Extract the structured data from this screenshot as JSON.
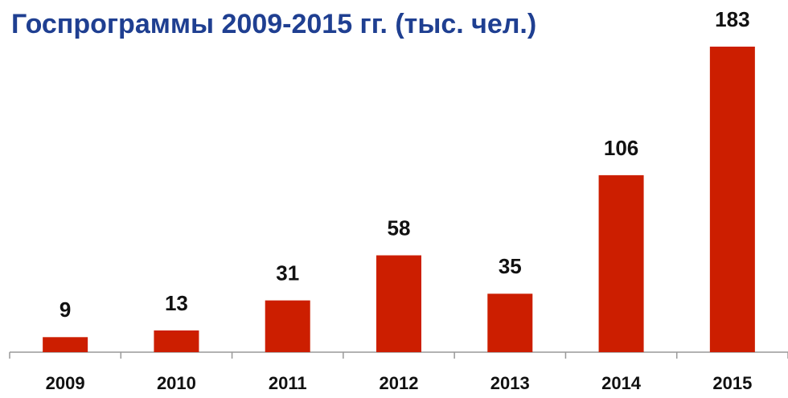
{
  "chart_data": {
    "type": "bar",
    "title": "Госпрограммы 2009-2015 гг. (тыс. чел.)",
    "categories": [
      "2009",
      "2010",
      "2011",
      "2012",
      "2013",
      "2014",
      "2015"
    ],
    "values": [
      9,
      13,
      31,
      58,
      35,
      106,
      183
    ],
    "color": "#cc1e00"
  }
}
